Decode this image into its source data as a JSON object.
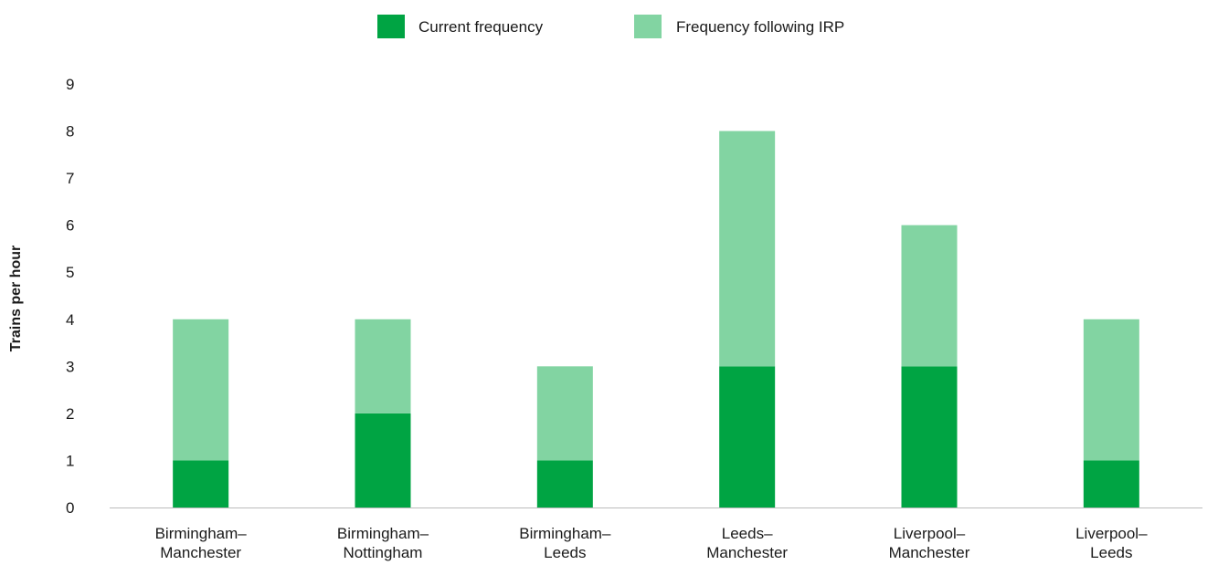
{
  "chart_data": {
    "type": "bar",
    "stacked": true,
    "categories": [
      [
        "Birmingham–",
        "Manchester"
      ],
      [
        "Birmingham–",
        "Nottingham"
      ],
      [
        "Birmingham–",
        "Leeds"
      ],
      [
        "Leeds–",
        "Manchester"
      ],
      [
        "Liverpool–",
        "Manchester"
      ],
      [
        "Liverpool–",
        "Leeds"
      ]
    ],
    "series": [
      {
        "name": "Current frequency",
        "color": "#00a443",
        "values": [
          1,
          2,
          1,
          3,
          3,
          1
        ]
      },
      {
        "name": "Frequency following IRP",
        "color": "#82d4a2",
        "values": [
          3,
          2,
          2,
          5,
          3,
          3
        ]
      }
    ],
    "ylabel": "Trains per hour",
    "ylim": [
      0,
      9
    ],
    "yticks": [
      0,
      1,
      2,
      3,
      4,
      5,
      6,
      7,
      8,
      9
    ],
    "grid": false,
    "legend": "top-center"
  }
}
